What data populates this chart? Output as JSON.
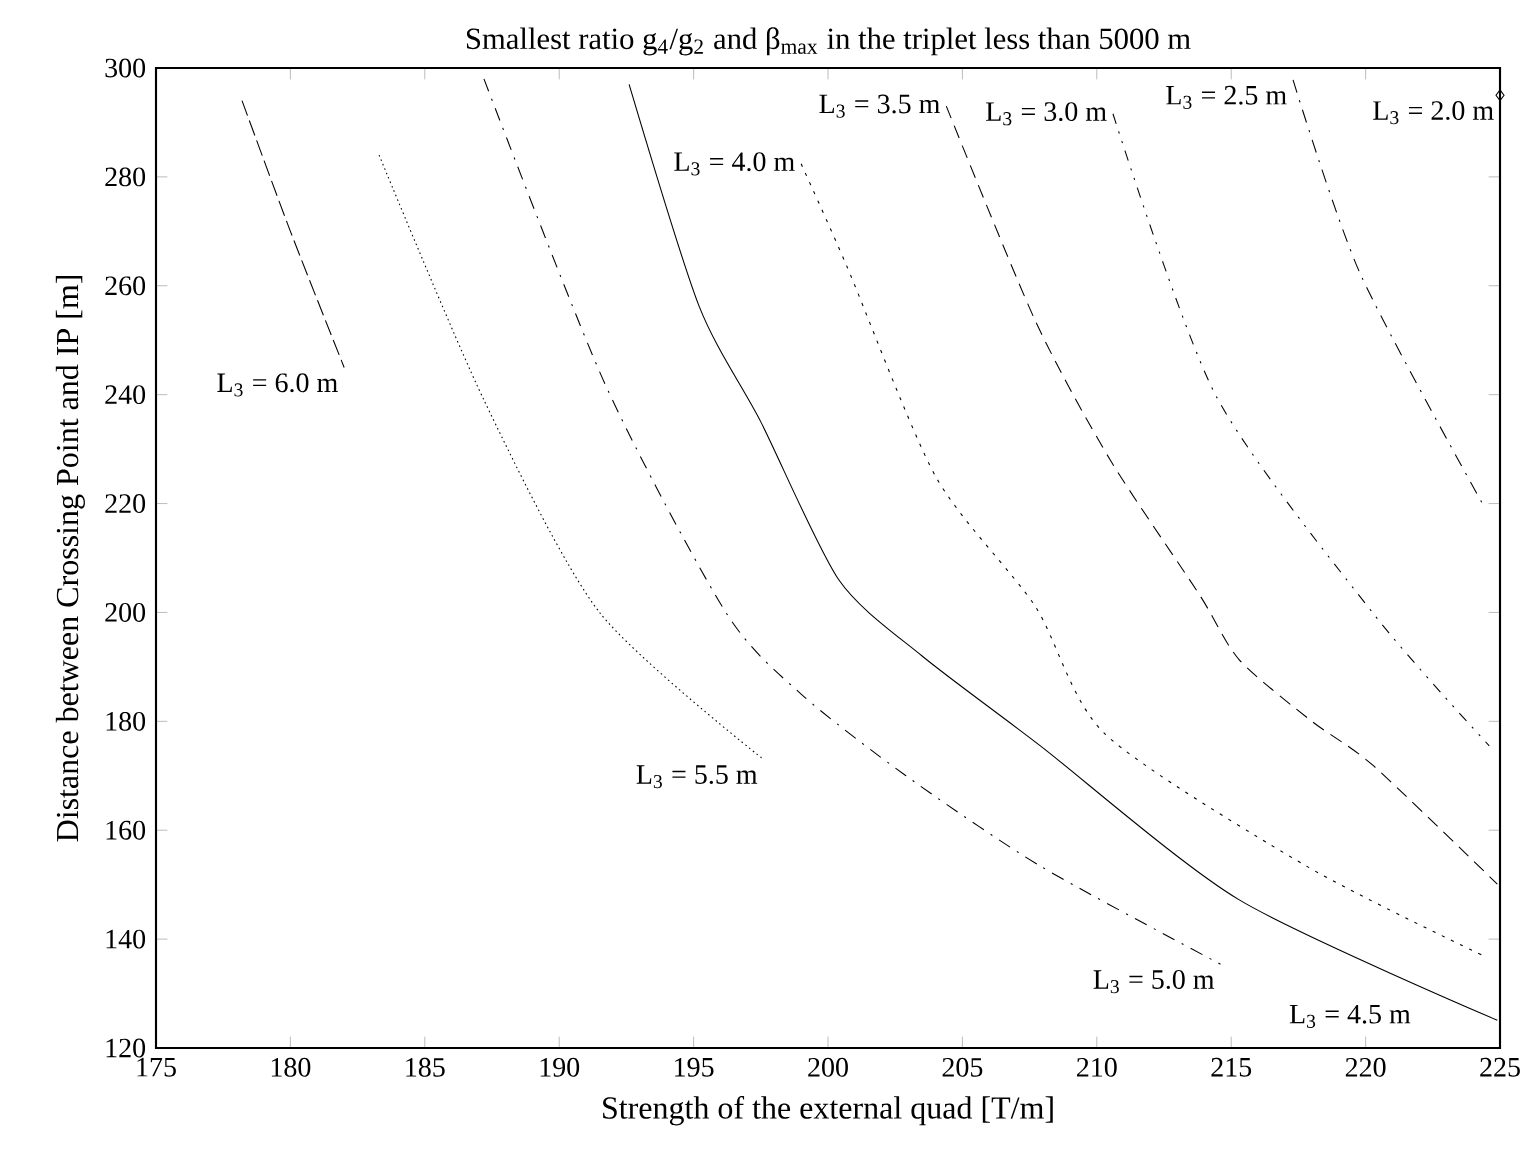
{
  "chart_data": {
    "type": "line",
    "title": "Smallest ratio g$_{4}$/g$_{2}$ and β$_{max}$  in the triplet less than 5000 m",
    "xlabel": "Strength of the external quad [T/m]",
    "ylabel": "Distance between Crossing Point and IP [m]",
    "xlim": [
      175,
      225
    ],
    "ylim": [
      120,
      300
    ],
    "xticks": [
      175,
      180,
      185,
      190,
      195,
      200,
      205,
      210,
      215,
      220,
      225
    ],
    "yticks": [
      120,
      140,
      160,
      180,
      200,
      220,
      240,
      260,
      280,
      300
    ],
    "grid": false,
    "series": [
      {
        "name": "L$_{3}$ =  6.0 m",
        "color": "#000000",
        "line_style": "longdash",
        "x": [
          178.2,
          180.0,
          182.0
        ],
        "values": [
          294,
          270,
          245
        ]
      },
      {
        "name": "L$_{3}$ =  5.5 m",
        "color": "#000000",
        "line_style": "dotted",
        "x": [
          183.3,
          187.2,
          191.5,
          197.6
        ],
        "values": [
          284,
          239,
          200,
          173
        ]
      },
      {
        "name": "L$_{3}$ =  5.0 m",
        "color": "#000000",
        "line_style": "dashdot",
        "x": [
          187.2,
          191.7,
          196.2,
          199.0,
          202.9,
          207.9,
          214.6
        ],
        "values": [
          298,
          242,
          200,
          185,
          170,
          153.4,
          135.4
        ]
      },
      {
        "name": "L$_{3}$ =  4.5 m",
        "color": "#000000",
        "line_style": "solid",
        "x": [
          192.6,
          195.2,
          197.5,
          200.4,
          203.5,
          207.9,
          215.3,
          224.9
        ],
        "values": [
          297,
          256.3,
          235,
          206,
          192,
          175.5,
          147.2,
          125.1
        ]
      },
      {
        "name": "L$_{3}$ =  4.0 m",
        "color": "#000000",
        "line_style": "sparsedot",
        "x": [
          199.0,
          200.7,
          204.0,
          207.7,
          210.3,
          217.8,
          224.4
        ],
        "values": [
          282.4,
          263.6,
          225,
          201.2,
          177.7,
          153.4,
          136.9
        ]
      },
      {
        "name": "L$_{3}$ =  3.5 m",
        "color": "#000000",
        "line_style": "dashed",
        "x": [
          204.4,
          207.7,
          210.5,
          213.8,
          215.3,
          218.0,
          220.3,
          224.9
        ],
        "values": [
          293,
          253.7,
          228,
          203.4,
          191.3,
          180,
          171.8,
          150.1
        ]
      },
      {
        "name": "L$_{3}$ =  3.0 m",
        "color": "#000000",
        "line_style": "dashdotdot",
        "x": [
          210.6,
          214.4,
          220.3,
          224.6
        ],
        "values": [
          291.6,
          240.1,
          199.7,
          175.5
        ]
      },
      {
        "name": "L$_{3}$ =  2.5 m",
        "color": "#000000",
        "line_style": "dashdot",
        "x": [
          217.3,
          219.8,
          224.4
        ],
        "values": [
          297.8,
          262.2,
          219.5
        ]
      },
      {
        "name": "L$_{3}$ =  2.0 m",
        "type": "scatter",
        "color": "#000000",
        "marker": "diamond",
        "x": [
          225
        ],
        "values": [
          295
        ]
      }
    ]
  }
}
